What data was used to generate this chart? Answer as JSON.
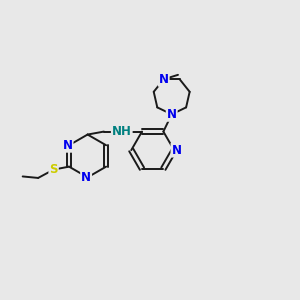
{
  "background_color": "#e8e8e8",
  "bond_color": "#1a1a1a",
  "N_color": "#0000ee",
  "S_color": "#cccc00",
  "NH_color": "#008080",
  "figsize": [
    3.0,
    3.0
  ],
  "dpi": 100,
  "lw": 1.4,
  "fs": 8.5,
  "xlim": [
    0,
    10
  ],
  "ylim": [
    0,
    10
  ]
}
